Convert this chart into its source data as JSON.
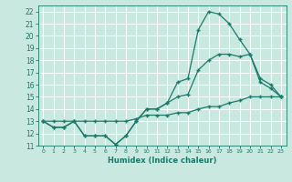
{
  "title": "",
  "xlabel": "Humidex (Indice chaleur)",
  "bg_color": "#c8e8e0",
  "grid_color": "#ffffff",
  "line_color": "#1a7a6a",
  "xlim": [
    -0.5,
    23.5
  ],
  "ylim": [
    11,
    22.5
  ],
  "xticks": [
    0,
    1,
    2,
    3,
    4,
    5,
    6,
    7,
    8,
    9,
    10,
    11,
    12,
    13,
    14,
    15,
    16,
    17,
    18,
    19,
    20,
    21,
    22,
    23
  ],
  "yticks": [
    11,
    12,
    13,
    14,
    15,
    16,
    17,
    18,
    19,
    20,
    21,
    22
  ],
  "series1": [
    13,
    12.5,
    12.5,
    13,
    11.8,
    11.8,
    11.8,
    11.1,
    11.8,
    13,
    14,
    14,
    14.5,
    16.2,
    16.5,
    20.5,
    22,
    21.8,
    21,
    19.7,
    18.5,
    16.2,
    15.7,
    15
  ],
  "series2": [
    13,
    12.5,
    12.5,
    13,
    11.8,
    11.8,
    11.8,
    11.1,
    11.8,
    13,
    14,
    14,
    14.5,
    15,
    15.2,
    17.2,
    18,
    18.5,
    18.5,
    18.3,
    18.5,
    16.5,
    16,
    15
  ],
  "series3": [
    13,
    13,
    13,
    13,
    13,
    13,
    13,
    13,
    13,
    13.2,
    13.5,
    13.5,
    13.5,
    13.7,
    13.7,
    14,
    14.2,
    14.2,
    14.5,
    14.7,
    15,
    15,
    15,
    15
  ]
}
